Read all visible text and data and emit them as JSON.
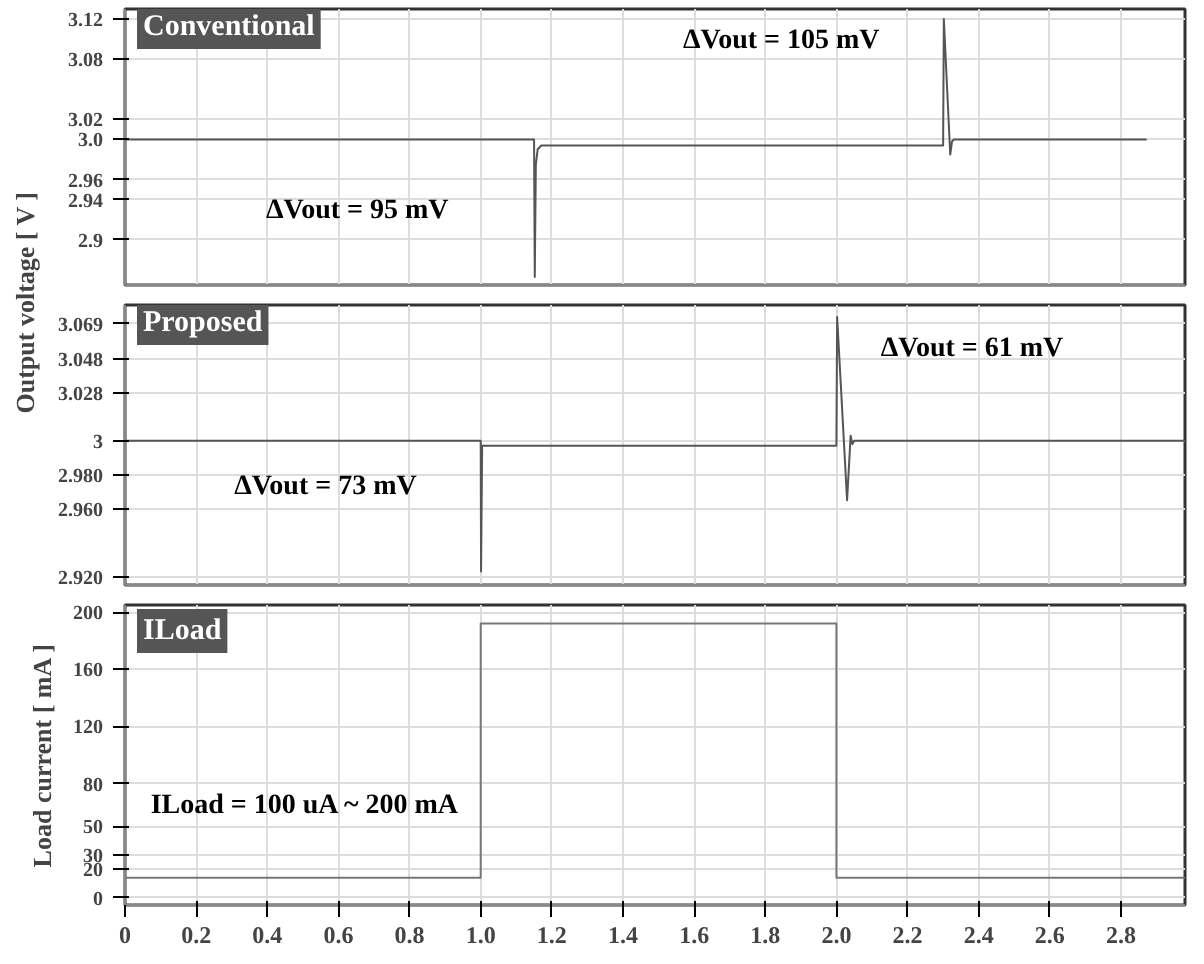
{
  "chart_data": [
    {
      "type": "line",
      "title": "Conventional",
      "ylabel": "Output  voltage [ V ]",
      "x": [
        0,
        1.15,
        1.152,
        1.155,
        1.16,
        1.17,
        2.3,
        2.302,
        2.32,
        2.325,
        2.33,
        2.34,
        2.87
      ],
      "series": [
        {
          "color": "#555555",
          "values": [
            3.0,
            3.0,
            2.863,
            2.975,
            2.99,
            2.994,
            2.994,
            3.12,
            2.985,
            2.998,
            3.0,
            3.0,
            3.0
          ]
        }
      ],
      "xlim": [
        0,
        2.98
      ],
      "ylim": [
        2.855,
        3.13
      ],
      "yticks": [
        2.9,
        2.94,
        2.96,
        {
          "value": 3.0,
          "label": "3.0"
        },
        3.02,
        3.08,
        3.12
      ],
      "xticks": [
        0,
        0.2,
        0.4,
        0.6,
        0.8,
        1,
        1.2,
        1.4,
        1.6,
        1.8,
        2,
        2.2,
        2.4,
        2.6,
        2.8
      ],
      "grid": true,
      "tick_labels": "y",
      "annotations": [
        "ΔVout = 95 mV",
        "ΔVout = 105 mV"
      ]
    },
    {
      "type": "line",
      "title": "Proposed",
      "x": [
        0,
        1.0,
        1.001,
        1.004,
        2.0,
        2.002,
        2.03,
        2.04,
        2.045,
        2.05,
        2.98
      ],
      "series": [
        {
          "color": "#555555",
          "values": [
            3.0,
            3.0,
            2.923,
            2.997,
            2.997,
            3.073,
            2.965,
            3.003,
            2.998,
            3.0,
            3.0
          ]
        }
      ],
      "xlim": [
        0,
        2.98
      ],
      "ylim": [
        2.915,
        3.08
      ],
      "yticks": [
        {
          "value": 2.92,
          "label": "2.920"
        },
        {
          "value": 2.96,
          "label": "2.960"
        },
        {
          "value": 2.98,
          "label": "2.980"
        },
        3,
        3.028,
        3.048,
        3.069
      ],
      "xticks": [
        0,
        0.2,
        0.4,
        0.6,
        0.8,
        1,
        1.2,
        1.4,
        1.6,
        1.8,
        2,
        2.2,
        2.4,
        2.6,
        2.8
      ],
      "grid": true,
      "tick_labels": "y",
      "annotations": [
        "ΔVout = 73 mV",
        "ΔVout = 61 mV"
      ]
    },
    {
      "type": "line",
      "title": "ILoad",
      "ylabel": "Load current [ mA ]",
      "x": [
        0,
        1.0,
        1.0,
        2.0,
        2.0,
        2.98
      ],
      "series": [
        {
          "color": "#777777",
          "values": [
            14,
            14,
            192,
            192,
            14,
            14
          ]
        }
      ],
      "xlim": [
        0,
        2.98
      ],
      "ylim": [
        -5,
        205
      ],
      "yticks": [
        0,
        20,
        30,
        50,
        80,
        120,
        160,
        200
      ],
      "xticks": [
        0,
        0.2,
        0.4,
        0.6,
        0.8,
        {
          "value": 1,
          "label": "1.0"
        },
        1.2,
        1.4,
        1.6,
        1.8,
        {
          "value": 2,
          "label": "2.0"
        },
        2.2,
        2.4,
        2.6,
        2.8
      ],
      "grid": true,
      "annotations": [
        "ILoad = 100 uA ~ 200 mA"
      ]
    }
  ]
}
